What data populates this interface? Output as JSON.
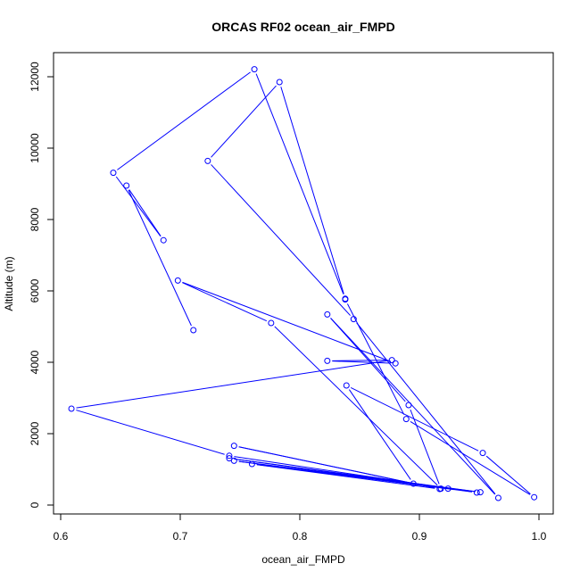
{
  "chart_data": {
    "type": "line",
    "title": "ORCAS RF02 ocean_air_FMPD",
    "xlabel": "ocean_air_FMPD",
    "ylabel": "Altitude (m)",
    "xlim": [
      0.6,
      1.0
    ],
    "ylim": [
      0,
      12000
    ],
    "xticks": [
      0.6,
      0.7,
      0.8,
      0.9,
      1.0
    ],
    "xtick_labels": [
      "0.6",
      "0.7",
      "0.8",
      "0.9",
      "1.0"
    ],
    "yticks": [
      0,
      2000,
      4000,
      6000,
      8000,
      10000,
      12000
    ],
    "ytick_labels": [
      "0",
      "2000",
      "4000",
      "6000",
      "8000",
      "10000",
      "12000"
    ],
    "grid": false,
    "line_color": "#0000ff",
    "marker": "open-circle",
    "series": [
      {
        "x": [
          0.711,
          0.655,
          0.686,
          0.644,
          0.762,
          0.838,
          0.783,
          0.723,
          0.845,
          0.966,
          0.823,
          0.891,
          0.918,
          0.776,
          0.698,
          0.88,
          0.823,
          0.877,
          0.609,
          0.741,
          0.948,
          0.745,
          0.951,
          0.741,
          0.924,
          0.76,
          0.917,
          0.745,
          0.895,
          0.839,
          0.953,
          0.996,
          0.889,
          0.838
        ],
        "y": [
          4900,
          8950,
          7420,
          9310,
          12210,
          5780,
          11850,
          9640,
          5210,
          200,
          5340,
          2800,
          460,
          5100,
          6290,
          3970,
          4040,
          4060,
          2700,
          1380,
          350,
          1240,
          360,
          1310,
          460,
          1150,
          450,
          1660,
          600,
          3350,
          1460,
          220,
          2410,
          5760
        ]
      }
    ]
  }
}
